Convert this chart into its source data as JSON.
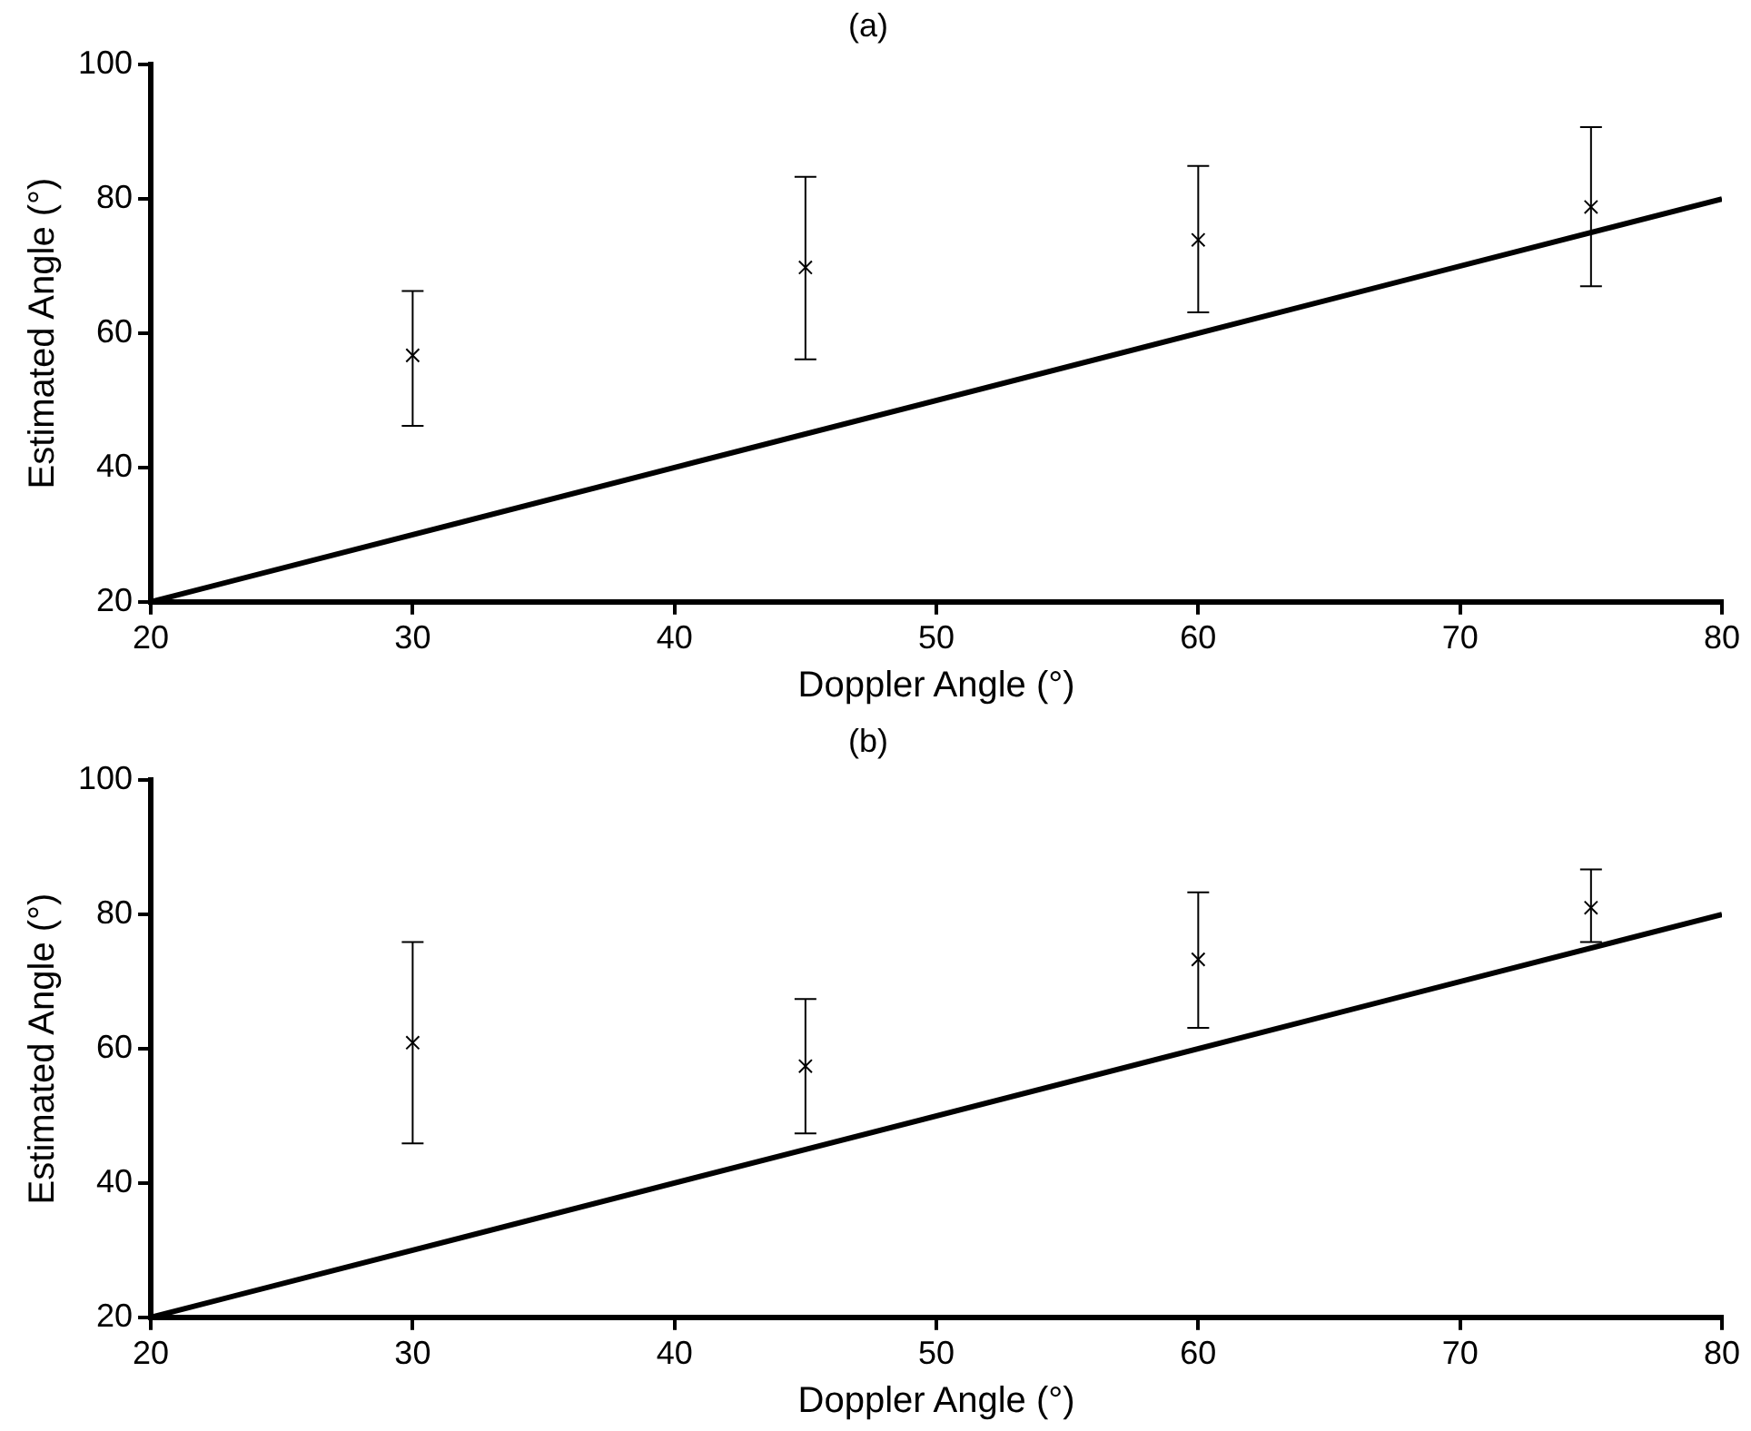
{
  "chart_data": [
    {
      "type": "scatter",
      "title": "(a)",
      "xlabel": "Doppler Angle (°)",
      "ylabel": "Estimated Angle (°)",
      "xlim": [
        20,
        80
      ],
      "xticks": [
        20,
        30,
        40,
        50,
        60,
        70,
        80
      ],
      "ylim": [
        20,
        100
      ],
      "yticks": [
        20,
        40,
        60,
        80,
        100
      ],
      "grid": false,
      "legend": false,
      "series": [
        {
          "color": "#000000",
          "marker": "cross",
          "x": [
            30,
            45,
            60,
            75
          ],
          "values": [
            56.7,
            69.8,
            73.9,
            78.8
          ],
          "errors": [
            [
              46.2,
              66.3
            ],
            [
              56.1,
              83.3
            ],
            [
              63.1,
              84.9
            ],
            [
              67.0,
              90.7
            ]
          ]
        },
        {
          "type": "line",
          "color": "#000000",
          "marker": "none",
          "x": [
            20,
            80
          ],
          "values": [
            20,
            80
          ]
        }
      ]
    },
    {
      "type": "scatter",
      "title": "(b)",
      "xlabel": "Doppler Angle (°)",
      "ylabel": "Estimated Angle (°)",
      "xlim": [
        20,
        80
      ],
      "xticks": [
        20,
        30,
        40,
        50,
        60,
        70,
        80
      ],
      "ylim": [
        20,
        100
      ],
      "yticks": [
        20,
        40,
        60,
        80,
        100
      ],
      "grid": false,
      "legend": false,
      "series": [
        {
          "color": "#000000",
          "marker": "cross",
          "x": [
            30,
            45,
            60,
            75
          ],
          "values": [
            60.9,
            57.4,
            73.3,
            81.0
          ],
          "errors": [
            [
              45.9,
              75.9
            ],
            [
              47.4,
              67.4
            ],
            [
              63.1,
              83.3
            ],
            [
              75.9,
              86.7
            ]
          ]
        },
        {
          "type": "line",
          "color": "#000000",
          "marker": "none",
          "x": [
            20,
            80
          ],
          "values": [
            20,
            80
          ]
        }
      ]
    }
  ]
}
